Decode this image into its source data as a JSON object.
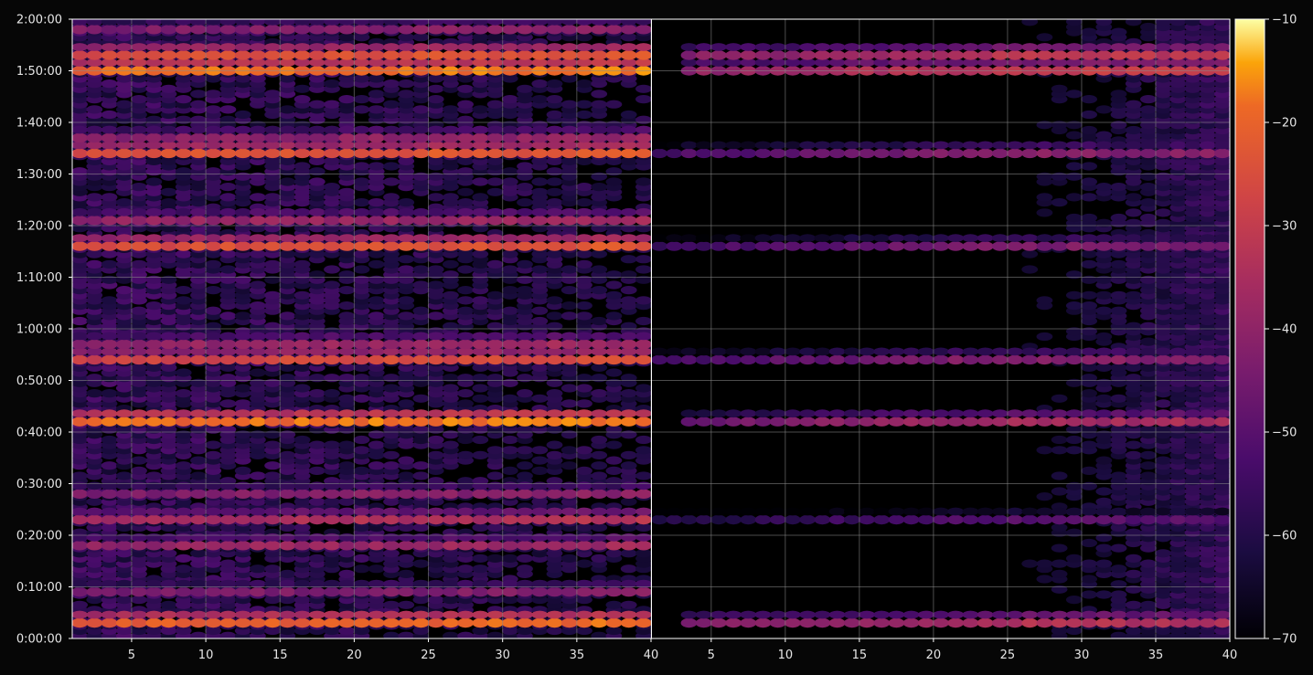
{
  "chart_data": {
    "type": "heatmap",
    "title": "",
    "xlabel": "",
    "ylabel": "",
    "colormap": "inferno",
    "background_color": "#060606",
    "grid": true,
    "y_axis": {
      "range_seconds": [
        0,
        7200
      ],
      "tick_labels": [
        "0:00:00",
        "0:10:00",
        "0:20:00",
        "0:30:00",
        "0:40:00",
        "0:50:00",
        "1:00:00",
        "1:10:00",
        "1:20:00",
        "1:30:00",
        "1:40:00",
        "1:50:00",
        "2:00:00"
      ]
    },
    "panels": [
      {
        "name": "left",
        "x_range": [
          1,
          40
        ],
        "x_tick_labels": [
          "5",
          "10",
          "15",
          "20",
          "25",
          "30",
          "35",
          "40"
        ],
        "bands": [
          {
            "time": "0:03:00",
            "level": -22
          },
          {
            "time": "0:09:00",
            "level": -45
          },
          {
            "time": "0:18:00",
            "level": -40
          },
          {
            "time": "0:23:00",
            "level": -36
          },
          {
            "time": "0:28:00",
            "level": -44
          },
          {
            "time": "0:42:00",
            "level": -20
          },
          {
            "time": "0:54:00",
            "level": -28
          },
          {
            "time": "0:57:00",
            "level": -40
          },
          {
            "time": "1:16:00",
            "level": -26
          },
          {
            "time": "1:21:00",
            "level": -40
          },
          {
            "time": "1:34:00",
            "level": -25
          },
          {
            "time": "1:37:00",
            "level": -42
          },
          {
            "time": "1:50:00",
            "level": -20
          },
          {
            "time": "1:53:00",
            "level": -26
          },
          {
            "time": "1:58:00",
            "level": -44
          }
        ]
      },
      {
        "name": "right",
        "x_range": [
          1,
          40
        ],
        "x_tick_labels": [
          "5",
          "10",
          "15",
          "20",
          "25",
          "30",
          "35",
          "40"
        ],
        "bands": [
          {
            "time": "0:03:00",
            "level": -34
          },
          {
            "time": "0:23:00",
            "level": -50
          },
          {
            "time": "0:42:00",
            "level": -36
          },
          {
            "time": "0:54:00",
            "level": -42
          },
          {
            "time": "1:16:00",
            "level": -44
          },
          {
            "time": "1:34:00",
            "level": -42
          },
          {
            "time": "1:50:00",
            "level": -30
          },
          {
            "time": "1:53:00",
            "level": -32
          }
        ]
      }
    ],
    "colorbar": {
      "range": [
        -70,
        -10
      ],
      "tick_labels": [
        "−10",
        "−20",
        "−30",
        "−40",
        "−50",
        "−60",
        "−70"
      ]
    }
  }
}
